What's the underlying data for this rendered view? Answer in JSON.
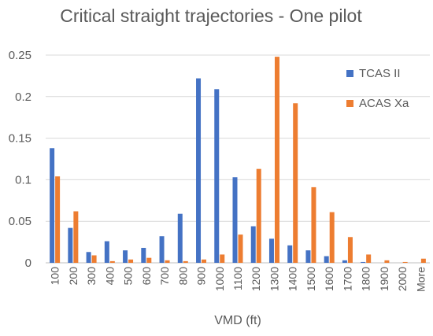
{
  "chart_data": {
    "type": "bar",
    "title": "Critical straight trajectories - One pilot",
    "xlabel": "VMD (ft)",
    "ylabel": "",
    "ylim": [
      0,
      0.25
    ],
    "yticks": [
      "0",
      "0.05",
      "0.1",
      "0.15",
      "0.2",
      "0.25"
    ],
    "grid": true,
    "legend_position": "right",
    "categories": [
      "100",
      "200",
      "300",
      "400",
      "500",
      "600",
      "700",
      "800",
      "900",
      "1000",
      "1100",
      "1200",
      "1300",
      "1400",
      "1500",
      "1600",
      "1700",
      "1800",
      "1900",
      "2000",
      "More"
    ],
    "series": [
      {
        "name": "TCAS II",
        "color": "#4472C4",
        "values": [
          0.138,
          0.042,
          0.013,
          0.026,
          0.015,
          0.018,
          0.032,
          0.059,
          0.222,
          0.209,
          0.103,
          0.044,
          0.029,
          0.021,
          0.015,
          0.008,
          0.003,
          0.001,
          0.0,
          0.0,
          0.0
        ]
      },
      {
        "name": "ACAS Xa",
        "color": "#ED7D31",
        "values": [
          0.104,
          0.062,
          0.009,
          0.002,
          0.004,
          0.006,
          0.003,
          0.002,
          0.004,
          0.01,
          0.034,
          0.113,
          0.248,
          0.192,
          0.091,
          0.061,
          0.031,
          0.01,
          0.003,
          0.001,
          0.005
        ]
      }
    ]
  }
}
